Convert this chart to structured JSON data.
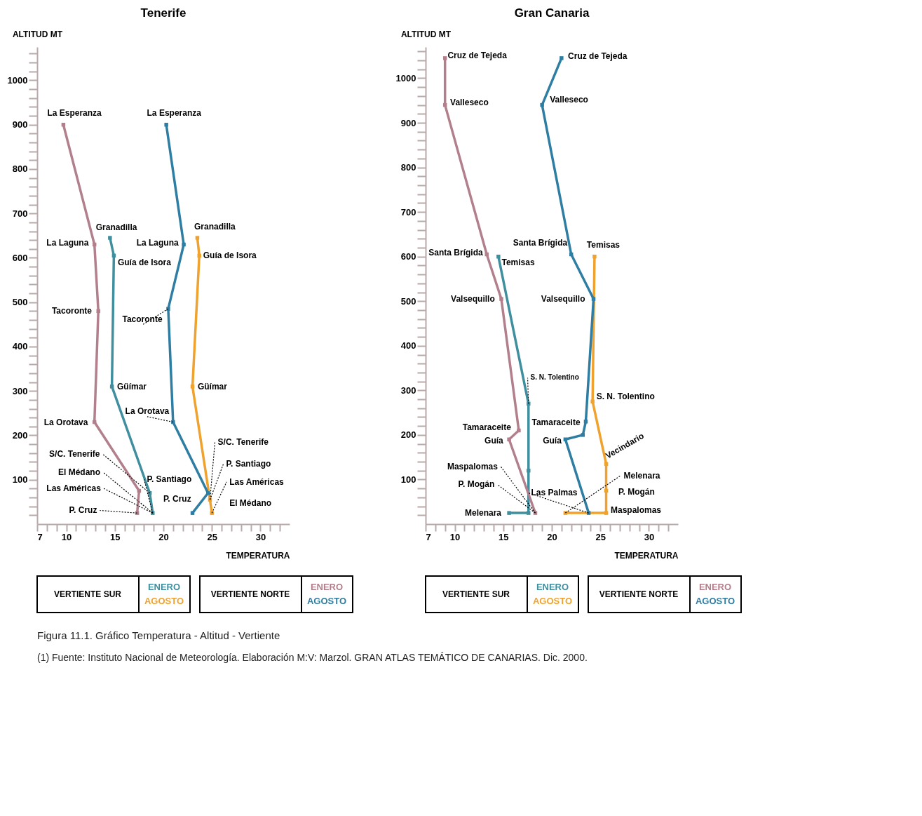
{
  "chart_data": [
    {
      "type": "line",
      "title": "Tenerife",
      "xlabel": "TEMPERATURA",
      "ylabel": "ALTITUD MT",
      "legend": "bottom",
      "marker": "square",
      "line_style": "solid",
      "xlim": [
        7,
        33
      ],
      "ylim": [
        0,
        1075
      ],
      "xticks": [
        7,
        {
          "value": 8,
          "label": null
        },
        {
          "value": 9,
          "label": null
        },
        10,
        {
          "value": 11,
          "label": null
        },
        {
          "value": 12,
          "label": null
        },
        {
          "value": 13,
          "label": null
        },
        {
          "value": 14,
          "label": null
        },
        15,
        {
          "value": 16,
          "label": null
        },
        {
          "value": 17,
          "label": null
        },
        {
          "value": 18,
          "label": null
        },
        {
          "value": 19,
          "label": null
        },
        20,
        {
          "value": 21,
          "label": null
        },
        {
          "value": 22,
          "label": null
        },
        {
          "value": 23,
          "label": null
        },
        {
          "value": 24,
          "label": null
        },
        25,
        {
          "value": 26,
          "label": null
        },
        {
          "value": 27,
          "label": null
        },
        {
          "value": 28,
          "label": null
        },
        {
          "value": 29,
          "label": null
        },
        30,
        {
          "value": 31,
          "label": null
        },
        {
          "value": 32,
          "label": null
        }
      ],
      "yticks": [
        {
          "value": 20,
          "label": null
        },
        {
          "value": 40,
          "label": null
        },
        {
          "value": 60,
          "label": null
        },
        {
          "value": 80,
          "label": null
        },
        100,
        {
          "value": 120,
          "label": null
        },
        {
          "value": 140,
          "label": null
        },
        {
          "value": 160,
          "label": null
        },
        {
          "value": 180,
          "label": null
        },
        200,
        {
          "value": 220,
          "label": null
        },
        {
          "value": 240,
          "label": null
        },
        {
          "value": 260,
          "label": null
        },
        {
          "value": 280,
          "label": null
        },
        300,
        {
          "value": 320,
          "label": null
        },
        {
          "value": 340,
          "label": null
        },
        {
          "value": 360,
          "label": null
        },
        {
          "value": 380,
          "label": null
        },
        400,
        {
          "value": 420,
          "label": null
        },
        {
          "value": 440,
          "label": null
        },
        {
          "value": 460,
          "label": null
        },
        {
          "value": 480,
          "label": null
        },
        500,
        {
          "value": 520,
          "label": null
        },
        {
          "value": 540,
          "label": null
        },
        {
          "value": 560,
          "label": null
        },
        {
          "value": 580,
          "label": null
        },
        600,
        {
          "value": 620,
          "label": null
        },
        {
          "value": 640,
          "label": null
        },
        {
          "value": 660,
          "label": null
        },
        {
          "value": 680,
          "label": null
        },
        700,
        {
          "value": 720,
          "label": null
        },
        {
          "value": 740,
          "label": null
        },
        {
          "value": 760,
          "label": null
        },
        {
          "value": 780,
          "label": null
        },
        800,
        {
          "value": 820,
          "label": null
        },
        {
          "value": 840,
          "label": null
        },
        {
          "value": 860,
          "label": null
        },
        {
          "value": 880,
          "label": null
        },
        900,
        {
          "value": 920,
          "label": null
        },
        {
          "value": 940,
          "label": null
        },
        {
          "value": 960,
          "label": null
        },
        {
          "value": 980,
          "label": null
        },
        1000,
        {
          "value": 1020,
          "label": null
        },
        {
          "value": 1040,
          "label": null
        },
        {
          "value": 1060,
          "label": null
        }
      ],
      "series": [
        {
          "name": "ENERO",
          "color": "#3f8f9f",
          "x": [
            14.5,
            14.9,
            14.7,
            18.6,
            18.9
          ],
          "values": [
            645,
            605,
            310,
            70,
            25
          ]
        },
        {
          "name": "AGOSTO",
          "color": "#f0a22e",
          "x": [
            23.5,
            23.7,
            23.0,
            24.8,
            25.0
          ],
          "values": [
            645,
            605,
            310,
            55,
            25
          ]
        },
        {
          "name": "ENERO",
          "color": "#b2808c",
          "x": [
            9.7,
            12.9,
            13.3,
            12.9,
            17.5,
            17.3
          ],
          "values": [
            900,
            630,
            480,
            230,
            75,
            25
          ]
        },
        {
          "name": "AGOSTO",
          "color": "#2e7da3",
          "x": [
            20.3,
            22.1,
            20.5,
            21.0,
            24.6,
            23.0
          ],
          "values": [
            900,
            630,
            485,
            230,
            70,
            25
          ]
        }
      ],
      "annotations": [
        "VERTIENTE SUR",
        "VERTIENTE NORTE",
        "Figura 11.1. Gráfico Temperatura - Altitud - Vertiente",
        "(1)  Fuente: Instituto Nacional de Meteorología. Elaboración M:V: Marzol. GRAN ATLAS TEMÁTICO DE CANARIAS. Dic. 2000.",
        {
          "text": "La Esperanza",
          "x": 9.7,
          "y": 900
        },
        {
          "text": "La Esperanza",
          "x": 20.3,
          "y": 900
        },
        {
          "text": "La Laguna",
          "x": 12.9,
          "y": 630
        },
        {
          "text": "La Laguna",
          "x": 22.1,
          "y": 630
        },
        {
          "text": "Granadilla",
          "x": 14.5,
          "y": 645
        },
        {
          "text": "Granadilla",
          "x": 23.5,
          "y": 645
        },
        {
          "text": "Guía de Isora",
          "x": 14.9,
          "y": 605
        },
        {
          "text": "Guía de Isora",
          "x": 23.7,
          "y": 605
        },
        {
          "text": "Tacoronte",
          "x": 13.3,
          "y": 480
        },
        {
          "text": "Tacoronte",
          "x": 20.5,
          "y": 485
        },
        {
          "text": "Güímar",
          "x": 14.7,
          "y": 310
        },
        {
          "text": "Güímar",
          "x": 23.0,
          "y": 310
        },
        {
          "text": "La Orotava",
          "x": 12.9,
          "y": 230
        },
        {
          "text": "La Orotava",
          "x": 21.0,
          "y": 230
        },
        {
          "text": "S/C. Tenerife",
          "x": 18.6,
          "y": 70
        },
        {
          "text": "El Médano",
          "x": 18.9,
          "y": 25
        },
        {
          "text": "Las Américas",
          "x": 18.9,
          "y": 25
        },
        {
          "text": "P. Cruz",
          "x": 17.3,
          "y": 25
        },
        {
          "text": "P. Santiago",
          "x": 18.9,
          "y": 25
        },
        {
          "text": "P. Cruz",
          "x": 23.0,
          "y": 25
        },
        {
          "text": "S/C. Tenerife",
          "x": 24.8,
          "y": 55
        },
        {
          "text": "P. Santiago",
          "x": 24.8,
          "y": 55
        },
        {
          "text": "Las Américas",
          "x": 25.0,
          "y": 25
        },
        {
          "text": "El Médano",
          "x": 25.0,
          "y": 25
        }
      ]
    },
    {
      "type": "line",
      "title": "Gran Canaria",
      "xlabel": "TEMPERATURA",
      "ylabel": "ALTITUD MT",
      "legend": "bottom",
      "marker": "square",
      "line_style": "solid",
      "xlim": [
        7,
        33
      ],
      "ylim": [
        0,
        1070
      ],
      "xticks": [
        7,
        {
          "value": 8,
          "label": null
        },
        {
          "value": 9,
          "label": null
        },
        10,
        {
          "value": 11,
          "label": null
        },
        {
          "value": 12,
          "label": null
        },
        {
          "value": 13,
          "label": null
        },
        {
          "value": 14,
          "label": null
        },
        15,
        {
          "value": 16,
          "label": null
        },
        {
          "value": 17,
          "label": null
        },
        {
          "value": 18,
          "label": null
        },
        {
          "value": 19,
          "label": null
        },
        20,
        {
          "value": 21,
          "label": null
        },
        {
          "value": 22,
          "label": null
        },
        {
          "value": 23,
          "label": null
        },
        {
          "value": 24,
          "label": null
        },
        25,
        {
          "value": 26,
          "label": null
        },
        {
          "value": 27,
          "label": null
        },
        {
          "value": 28,
          "label": null
        },
        {
          "value": 29,
          "label": null
        },
        30,
        {
          "value": 31,
          "label": null
        },
        {
          "value": 32,
          "label": null
        }
      ],
      "yticks": [
        {
          "value": 20,
          "label": null
        },
        {
          "value": 40,
          "label": null
        },
        {
          "value": 60,
          "label": null
        },
        {
          "value": 80,
          "label": null
        },
        100,
        {
          "value": 120,
          "label": null
        },
        {
          "value": 140,
          "label": null
        },
        {
          "value": 160,
          "label": null
        },
        {
          "value": 180,
          "label": null
        },
        200,
        {
          "value": 220,
          "label": null
        },
        {
          "value": 240,
          "label": null
        },
        {
          "value": 260,
          "label": null
        },
        {
          "value": 280,
          "label": null
        },
        300,
        {
          "value": 320,
          "label": null
        },
        {
          "value": 340,
          "label": null
        },
        {
          "value": 360,
          "label": null
        },
        {
          "value": 380,
          "label": null
        },
        400,
        {
          "value": 420,
          "label": null
        },
        {
          "value": 440,
          "label": null
        },
        {
          "value": 460,
          "label": null
        },
        {
          "value": 480,
          "label": null
        },
        500,
        {
          "value": 520,
          "label": null
        },
        {
          "value": 540,
          "label": null
        },
        {
          "value": 560,
          "label": null
        },
        {
          "value": 580,
          "label": null
        },
        600,
        {
          "value": 620,
          "label": null
        },
        {
          "value": 640,
          "label": null
        },
        {
          "value": 660,
          "label": null
        },
        {
          "value": 680,
          "label": null
        },
        700,
        {
          "value": 720,
          "label": null
        },
        {
          "value": 740,
          "label": null
        },
        {
          "value": 760,
          "label": null
        },
        {
          "value": 780,
          "label": null
        },
        800,
        {
          "value": 820,
          "label": null
        },
        {
          "value": 840,
          "label": null
        },
        {
          "value": 860,
          "label": null
        },
        {
          "value": 880,
          "label": null
        },
        900,
        {
          "value": 920,
          "label": null
        },
        {
          "value": 940,
          "label": null
        },
        {
          "value": 960,
          "label": null
        },
        {
          "value": 980,
          "label": null
        },
        1000,
        {
          "value": 1020,
          "label": null
        },
        {
          "value": 1040,
          "label": null
        },
        {
          "value": 1060,
          "label": null
        }
      ],
      "series": [
        {
          "name": "ENERO",
          "color": "#3f8f9f",
          "x": [
            14.5,
            17.6,
            17.6,
            17.6,
            15.6
          ],
          "values": [
            600,
            270,
            120,
            25,
            25
          ]
        },
        {
          "name": "AGOSTO",
          "color": "#f0a22e",
          "x": [
            24.4,
            24.2,
            25.6,
            25.6,
            25.6,
            21.4
          ],
          "values": [
            600,
            275,
            135,
            75,
            25,
            25
          ]
        },
        {
          "name": "ENERO",
          "color": "#b2808c",
          "x": [
            9.0,
            9.0,
            13.3,
            14.8,
            16.6,
            15.6,
            18.3
          ],
          "values": [
            1045,
            940,
            605,
            505,
            210,
            190,
            25
          ]
        },
        {
          "name": "AGOSTO",
          "color": "#2e7da3",
          "x": [
            21.0,
            19.0,
            22.0,
            24.3,
            23.5,
            23.2,
            21.4,
            23.8
          ],
          "values": [
            1045,
            940,
            605,
            505,
            230,
            200,
            190,
            25
          ]
        }
      ],
      "annotations": [
        "VERTIENTE SUR",
        "VERTIENTE NORTE",
        {
          "text": "Cruz de Tejeda",
          "x": 9.0,
          "y": 1045
        },
        {
          "text": "Valleseco",
          "x": 9.0,
          "y": 940
        },
        {
          "text": "Cruz de Tejeda",
          "x": 21.0,
          "y": 1045
        },
        {
          "text": "Valleseco",
          "x": 19.0,
          "y": 940
        },
        {
          "text": "Santa Brígida",
          "x": 13.3,
          "y": 605
        },
        {
          "text": "Santa Brígida",
          "x": 22.0,
          "y": 605
        },
        {
          "text": "Temisas",
          "x": 14.5,
          "y": 600
        },
        {
          "text": "Temisas",
          "x": 24.4,
          "y": 600
        },
        {
          "text": "Valsequillo",
          "x": 14.8,
          "y": 505
        },
        {
          "text": "Valsequillo",
          "x": 24.3,
          "y": 505
        },
        {
          "text": "S. N. Tolentino",
          "x": 17.6,
          "y": 270
        },
        {
          "text": "S. N. Tolentino",
          "x": 24.2,
          "y": 275
        },
        {
          "text": "Tamaraceite",
          "x": 16.6,
          "y": 210
        },
        {
          "text": "Guía",
          "x": 15.6,
          "y": 190
        },
        {
          "text": "Tamaraceite",
          "x": 23.2,
          "y": 200
        },
        {
          "text": "Guía",
          "x": 21.4,
          "y": 190
        },
        {
          "text": "Vecindario",
          "x": 25.6,
          "y": 135
        },
        {
          "text": "Maspalomas",
          "x": 18.3,
          "y": 25
        },
        {
          "text": "P. Mogán",
          "x": 18.3,
          "y": 25
        },
        {
          "text": "Melenara",
          "x": 15.6,
          "y": 25
        },
        {
          "text": "Las Palmas",
          "x": 23.8,
          "y": 25
        },
        {
          "text": "Melenara",
          "x": 21.4,
          "y": 25
        },
        {
          "text": "P. Mogán",
          "x": 25.6,
          "y": 75
        },
        {
          "text": "Maspalomas",
          "x": 25.6,
          "y": 25
        }
      ]
    }
  ]
}
